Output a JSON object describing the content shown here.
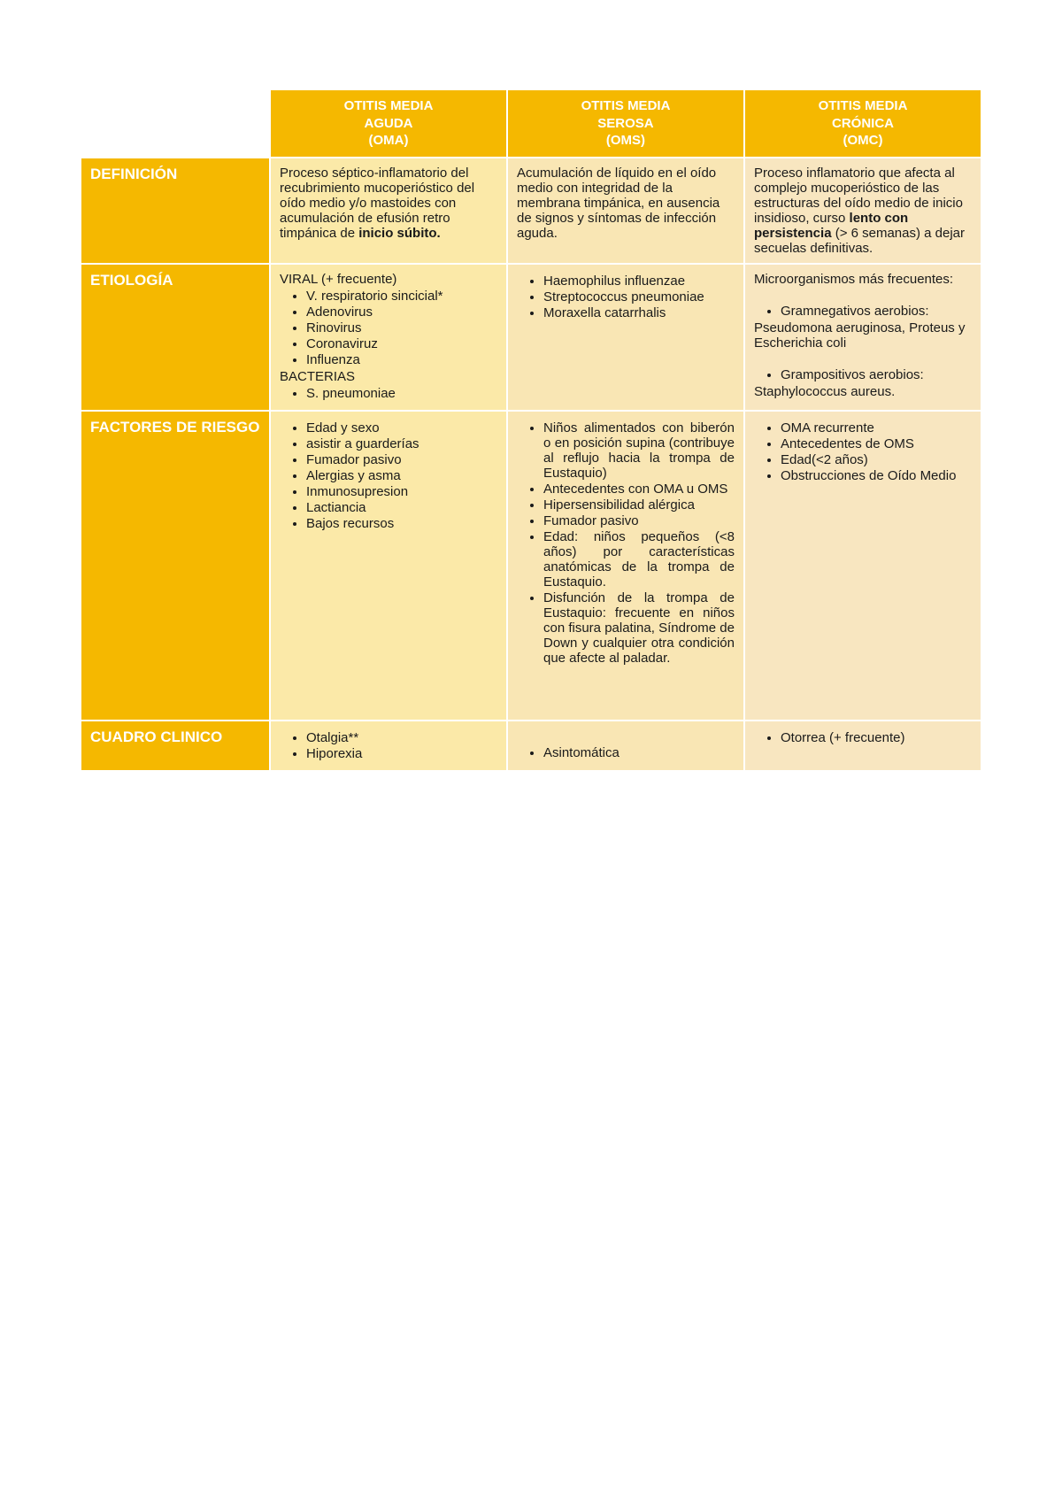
{
  "colors": {
    "header_bg": "#f5b800",
    "header_fg": "#ffffff",
    "cell_oma": "#fbe9a8",
    "cell_oms": "#f9e6b4",
    "cell_omc": "#f8e6c0",
    "page_bg": "#ffffff",
    "text": "#1a1a1a"
  },
  "headers": {
    "oma_l1": "OTITIS MEDIA",
    "oma_l2": "AGUDA",
    "oma_l3": "(OMA)",
    "oms_l1": "OTITIS MEDIA",
    "oms_l2": "SEROSA",
    "oms_l3": "(OMS)",
    "omc_l1": "OTITIS MEDIA",
    "omc_l2": "CRÓNICA",
    "omc_l3": "(OMC)"
  },
  "rows": {
    "definicion": {
      "label": "DEFINICIÓN",
      "oma_pre": "Proceso séptico-inflamatorio del recubrimiento mucoperióstico del oído medio y/o mastoides con acumulación de efusión retro timpánica de ",
      "oma_bold": "inicio súbito.",
      "oms": "Acumulación de líquido en el oído medio con integridad de la membrana timpánica, en ausencia de signos y síntomas de infección aguda.",
      "omc_pre": "Proceso inflamatorio que afecta al complejo mucoperióstico de las estructuras del oído medio de inicio insidioso, curso ",
      "omc_bold": "lento con persistencia",
      "omc_post": " (> 6 semanas) a dejar secuelas definitivas."
    },
    "etiologia": {
      "label": "ETIOLOGÍA",
      "oma_viral_head": "VIRAL (+ frecuente)",
      "oma_viral": [
        "V. respiratorio sincicial*",
        "Adenovirus",
        "Rinovirus",
        "Coronaviruz",
        "Influenza"
      ],
      "oma_bact_head": "BACTERIAS",
      "oma_bact": [
        "S. pneumoniae"
      ],
      "oms": [
        "Haemophilus influenzae",
        "Streptococcus pneumoniae",
        "Moraxella catarrhalis"
      ],
      "omc_head": "Microorganismos más frecuentes:",
      "omc_gn_label": "Gramnegativos aerobios:",
      "omc_gn_text": "Pseudomona aeruginosa, Proteus y Escherichia coli",
      "omc_gp_label": "Grampositivos aerobios:",
      "omc_gp_text": "Staphylococcus aureus."
    },
    "factores": {
      "label": "FACTORES DE RIESGO",
      "oma": [
        "Edad y sexo",
        "asistir a guarderías",
        "Fumador pasivo",
        "Alergias y asma",
        "Inmunosupresion",
        "Lactiancia",
        "Bajos recursos"
      ],
      "oms": [
        "Niños alimentados con biberón o en posición supina (contribuye al reflujo hacia la trompa de Eustaquio)",
        "Antecedentes con OMA u OMS",
        "Hipersensibilidad alérgica",
        "Fumador pasivo",
        "Edad: niños pequeños (<8 años) por características anatómicas de la trompa de Eustaquio.",
        "Disfunción de la trompa de Eustaquio: frecuente en niños con fisura palatina, Síndrome de Down y cualquier otra condición que afecte al paladar."
      ],
      "omc": [
        "OMA recurrente",
        "Antecedentes de OMS",
        "Edad(<2 años)",
        "Obstrucciones de Oído Medio"
      ]
    },
    "cuadro": {
      "label": "CUADRO CLINICO",
      "oma": [
        "Otalgia**",
        "Hiporexia"
      ],
      "oms": [
        "Asintomática"
      ],
      "omc": [
        "Otorrea (+ frecuente)"
      ]
    }
  }
}
